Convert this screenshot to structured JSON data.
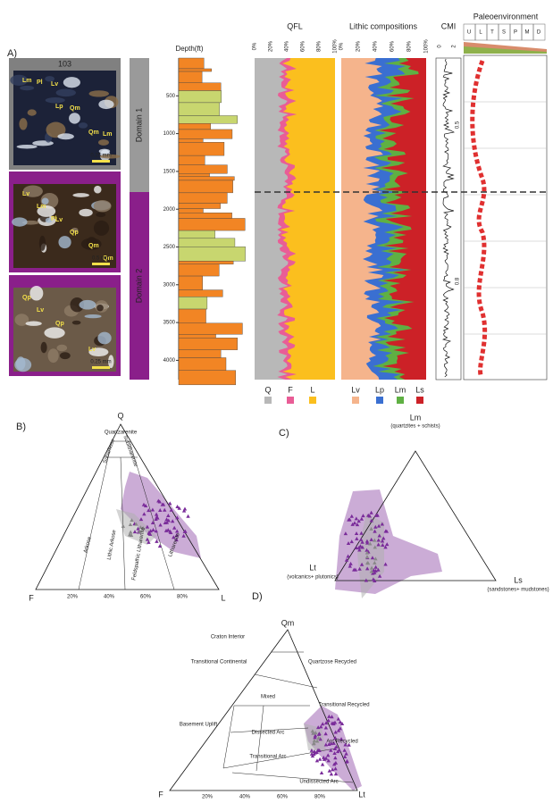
{
  "panel_a": {
    "label": "A)",
    "photos": [
      {
        "title": "103",
        "minerals": [
          "Lm",
          "Lp",
          "Qm",
          "Pl",
          "Qm",
          "Lm",
          "Lv"
        ],
        "scale": "0.25 mm"
      },
      {
        "minerals": [
          "Lv",
          "Lv",
          "Qm",
          "Lm",
          "Qp",
          "Qm",
          "Pl"
        ],
        "scale": "0.5 mm"
      },
      {
        "minerals": [
          "Qp",
          "Qp",
          "Lv",
          "Lv"
        ],
        "scale": "0.25 mm"
      }
    ],
    "domains": [
      "Domain 1",
      "Domain 2"
    ],
    "depth": {
      "title": "Depth(ft)",
      "ticks": [
        "500",
        "1000",
        "1500",
        "2000",
        "2500",
        "3000",
        "3500",
        "4000"
      ]
    },
    "qfl": {
      "title": "QFL",
      "ticks": [
        "0%",
        "20%",
        "40%",
        "60%",
        "80%",
        "100%"
      ],
      "legend": [
        "Q",
        "F",
        "L"
      ]
    },
    "lithic": {
      "title": "Lithic compositions",
      "ticks": [
        "0%",
        "20%",
        "40%",
        "60%",
        "80%",
        "100%"
      ],
      "legend": [
        "Lv",
        "Lp",
        "Lm",
        "Ls"
      ]
    },
    "cmi": {
      "title": "CMI",
      "ticks": [
        "0",
        "2"
      ],
      "labels": [
        "0.5",
        "0.8"
      ]
    },
    "paleo": {
      "title": "Paleoenvironment",
      "columns": [
        "U",
        "L",
        "T",
        "S",
        "P",
        "M",
        "D"
      ]
    }
  },
  "panel_b": {
    "label": "B)",
    "apex": [
      "Q",
      "F",
      "L"
    ],
    "fields": [
      "Quartzarenite",
      "Subarkose",
      "Sublitharenite",
      "Arkose",
      "Lithic Arkose",
      "Feldspathic Litharenite",
      "Litharenite"
    ],
    "ticks": [
      "20%",
      "40%",
      "60%",
      "80%"
    ]
  },
  "panel_c": {
    "label": "C)",
    "apex": [
      "Lm",
      "Lt",
      "Ls"
    ],
    "notes": [
      "(quartzites + schists)",
      "(volcanics+ plutonics)",
      "(sandstones+ mudstones)"
    ]
  },
  "panel_d": {
    "label": "D)",
    "apex": [
      "Qm",
      "F",
      "Lt"
    ],
    "fields": [
      "Craton Interior",
      "Transitional Continental",
      "Quartzose Recycled",
      "Mixed",
      "Transitional Recycled",
      "Basement Uplift",
      "Dissected Arc",
      "Arc Recycled",
      "Transitional Arc",
      "Undissected Arc"
    ],
    "ticks": [
      "20%",
      "40%",
      "60%",
      "80%"
    ]
  }
}
